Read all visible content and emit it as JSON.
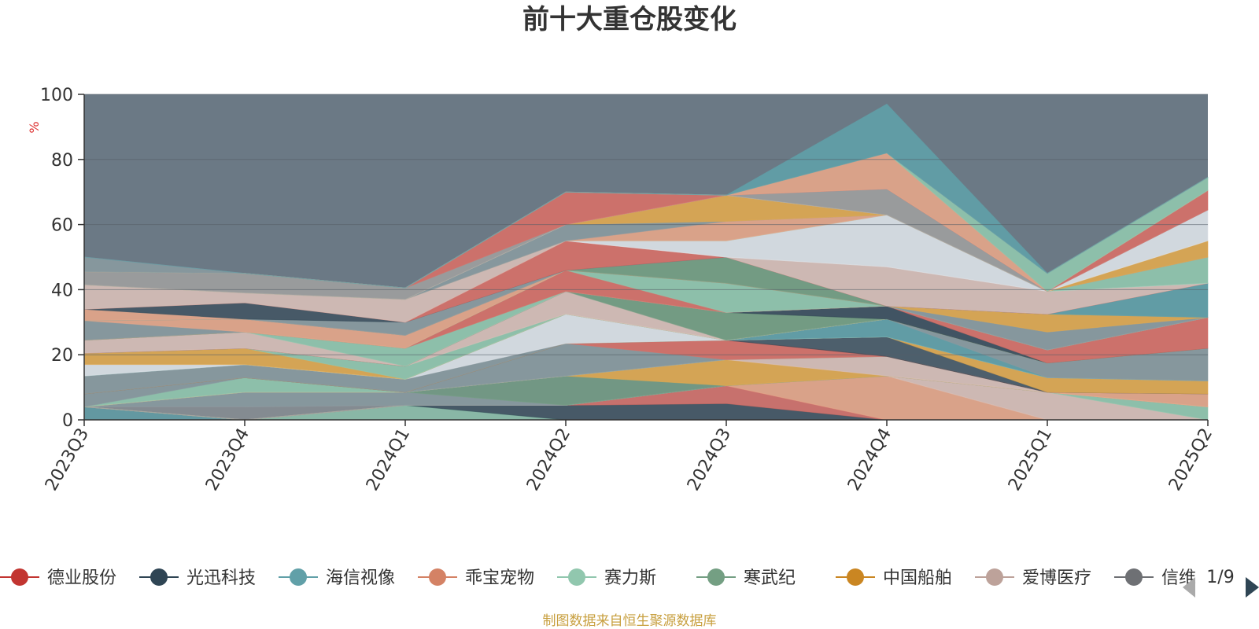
{
  "chart_data": {
    "type": "area",
    "title": "前十大重仓股变化",
    "ylabel": "%",
    "ylim": [
      0,
      100
    ],
    "y_ticks": [
      0,
      20,
      40,
      60,
      80,
      100
    ],
    "categories": [
      "2023Q3",
      "2023Q4",
      "2024Q1",
      "2024Q2",
      "2024Q3",
      "2024Q4",
      "2025Q1",
      "2025Q2"
    ],
    "legend_page": "1/9",
    "source": "制图数据来自恒生聚源数据库",
    "background_color": "#6b7985",
    "legend": [
      {
        "name": "德业股份",
        "color": "#c23531"
      },
      {
        "name": "光迅科技",
        "color": "#2f4554"
      },
      {
        "name": "海信视像",
        "color": "#61a0a8"
      },
      {
        "name": "乖宝宠物",
        "color": "#d48265"
      },
      {
        "name": "赛力斯",
        "color": "#91c7ae"
      },
      {
        "name": "寒武纪",
        "color": "#749f83"
      },
      {
        "name": "中国船舶",
        "color": "#ca8622"
      },
      {
        "name": "爱博医疗",
        "color": "#bda29a"
      },
      {
        "name": "信维通信",
        "color": "#6e7074"
      }
    ],
    "visible_legend_labels": [
      "德业股份",
      "光迅科技",
      "海信视像",
      "乖宝宠物",
      "赛力斯",
      "寒武纪",
      "中国船舶",
      "爱博医疗",
      "信维"
    ],
    "series": [
      {
        "color": "#61a0a8",
        "opacity": 0.8,
        "values": [
          4,
          0,
          0,
          0,
          0,
          0,
          0,
          0
        ]
      },
      {
        "color": "#91c7ae",
        "opacity": 0.8,
        "values": [
          0,
          0,
          4.5,
          0,
          0,
          0,
          0,
          0
        ]
      },
      {
        "color": "#2f4554",
        "opacity": 0.6,
        "values": [
          0,
          0,
          0,
          4.5,
          5,
          0,
          0,
          0
        ]
      },
      {
        "color": "#d77068",
        "opacity": 0.85,
        "values": [
          0,
          0,
          0,
          0,
          5.5,
          0,
          0,
          0
        ]
      },
      {
        "color": "#e5a68a",
        "opacity": 0.9,
        "values": [
          0,
          0,
          0,
          0,
          0,
          13.5,
          0,
          0
        ]
      },
      {
        "color": "#d8bfb8",
        "opacity": 0.9,
        "values": [
          0,
          0,
          0,
          0,
          0,
          0,
          8.5,
          0
        ]
      },
      {
        "color": "#91c7ae",
        "opacity": 0.9,
        "values": [
          0,
          0,
          0,
          0,
          0,
          0,
          0,
          4
        ]
      },
      {
        "color": "#9e9e9e",
        "opacity": 0.5,
        "values": [
          0,
          4,
          0,
          0,
          0,
          0,
          0,
          0
        ]
      },
      {
        "color": "#8a9aa0",
        "opacity": 0.9,
        "values": [
          0,
          4.5,
          4,
          0,
          0,
          0,
          0,
          0
        ]
      },
      {
        "color": "#749f83",
        "opacity": 0.8,
        "values": [
          0,
          0,
          0,
          9,
          0,
          0,
          0,
          0
        ]
      },
      {
        "color": "#e0a850",
        "opacity": 0.9,
        "values": [
          0,
          0,
          0,
          0,
          8,
          0,
          0,
          0
        ]
      },
      {
        "color": "#d8bfb8",
        "opacity": 0.9,
        "values": [
          0,
          0,
          0,
          0,
          0,
          6,
          0,
          0
        ]
      },
      {
        "color": "#e5a68a",
        "opacity": 0.9,
        "values": [
          0,
          0,
          0,
          0,
          0,
          0,
          0,
          4
        ]
      },
      {
        "color": "#91c7ae",
        "opacity": 0.9,
        "values": [
          0,
          4.5,
          0,
          0,
          0,
          0,
          0,
          0
        ]
      },
      {
        "color": "#8a9aa0",
        "opacity": 0.9,
        "values": [
          4,
          0,
          0,
          10,
          0,
          0,
          0,
          0
        ]
      },
      {
        "color": "#d77068",
        "opacity": 0.9,
        "values": [
          0,
          0,
          0,
          0,
          6,
          0,
          0,
          0
        ]
      },
      {
        "color": "#2f4554",
        "opacity": 0.5,
        "values": [
          0,
          0,
          0,
          0,
          0,
          6,
          0,
          0
        ]
      },
      {
        "color": "#e0a850",
        "opacity": 0.9,
        "values": [
          0,
          0,
          0,
          0,
          0,
          0,
          4.5,
          4
        ]
      },
      {
        "color": "#8a9aa0",
        "opacity": 0.9,
        "values": [
          5.5,
          4,
          4,
          0,
          0,
          0,
          0,
          0
        ]
      },
      {
        "color": "#dde2e8",
        "opacity": 0.9,
        "values": [
          0,
          0,
          0,
          9,
          0,
          0,
          0,
          0
        ]
      },
      {
        "color": "#91c7ae",
        "opacity": 0.9,
        "values": [
          0,
          0,
          0,
          0,
          0,
          0,
          0,
          0
        ]
      },
      {
        "color": "#61a0a8",
        "opacity": 0.9,
        "values": [
          0,
          0,
          0,
          0,
          0,
          5.5,
          0,
          0
        ]
      },
      {
        "color": "#8a9aa0",
        "opacity": 0.9,
        "values": [
          0,
          0,
          0,
          0,
          0,
          0,
          4.5,
          10
        ]
      },
      {
        "color": "#dde2e8",
        "opacity": 0.9,
        "values": [
          3.5,
          0,
          0,
          0,
          0,
          0,
          0,
          0
        ]
      },
      {
        "color": "#e0a850",
        "opacity": 0.9,
        "values": [
          3.5,
          5,
          0,
          0,
          0,
          0,
          0,
          0
        ]
      },
      {
        "color": "#91c7ae",
        "opacity": 0.9,
        "values": [
          0,
          0,
          4,
          0,
          0,
          0,
          0,
          0
        ]
      },
      {
        "color": "#d8bfb8",
        "opacity": 0.9,
        "values": [
          0,
          0,
          0,
          7,
          0,
          0,
          0,
          0
        ]
      },
      {
        "color": "#749f83",
        "opacity": 0.9,
        "values": [
          0,
          0,
          0,
          0,
          8.5,
          0,
          0,
          0
        ]
      },
      {
        "color": "#2f4554",
        "opacity": 0.7,
        "values": [
          0,
          0,
          0,
          0,
          0,
          4,
          0,
          0
        ]
      },
      {
        "color": "#d77068",
        "opacity": 0.9,
        "values": [
          0,
          0,
          0,
          0,
          0,
          0,
          4,
          9.5
        ]
      },
      {
        "color": "#d8bfb8",
        "opacity": 0.9,
        "values": [
          4,
          5,
          0,
          0,
          0,
          0,
          0,
          0
        ]
      },
      {
        "color": "#91c7ae",
        "opacity": 0.9,
        "values": [
          0,
          0,
          5.5,
          0,
          0,
          0,
          0,
          0
        ]
      },
      {
        "color": "#d77068",
        "opacity": 0.9,
        "values": [
          0,
          0,
          0,
          6.5,
          0,
          0,
          0,
          0
        ]
      },
      {
        "color": "#91c7ae",
        "opacity": 0.9,
        "values": [
          0,
          0,
          0,
          0,
          9,
          0,
          0,
          0
        ]
      },
      {
        "color": "#8a9aa0",
        "opacity": 0.9,
        "values": [
          0,
          0,
          0,
          0,
          0,
          0,
          5.5,
          0
        ]
      },
      {
        "color": "#e0a850",
        "opacity": 0.9,
        "values": [
          0,
          0,
          0,
          0,
          0,
          0,
          5.5,
          0
        ]
      },
      {
        "color": "#8a9aa0",
        "opacity": 0.9,
        "values": [
          6,
          0,
          0,
          0,
          0,
          0,
          0,
          0
        ]
      },
      {
        "color": "#e5a68a",
        "opacity": 0.9,
        "values": [
          0,
          4,
          4,
          0,
          0,
          0,
          0,
          0
        ]
      },
      {
        "color": "#749f83",
        "opacity": 0.9,
        "values": [
          0,
          0,
          0,
          0,
          8,
          0,
          0,
          0
        ]
      },
      {
        "color": "#61a0a8",
        "opacity": 0.9,
        "values": [
          0,
          0,
          0,
          0,
          0,
          0,
          0,
          10.5
        ]
      },
      {
        "color": "#e5a68a",
        "opacity": 0.9,
        "values": [
          3.5,
          0,
          0,
          0,
          0,
          0,
          0,
          0
        ]
      },
      {
        "color": "#8a9aa0",
        "opacity": 0.9,
        "values": [
          0,
          0,
          4,
          0,
          0,
          0,
          0,
          0
        ]
      },
      {
        "color": "#2f4554",
        "opacity": 0.6,
        "values": [
          0,
          5,
          0,
          0,
          0,
          0,
          0,
          0
        ]
      },
      {
        "color": "#d77068",
        "opacity": 0.9,
        "values": [
          0,
          0,
          0,
          9,
          0,
          0,
          0,
          0
        ]
      },
      {
        "color": "#d8bfb8",
        "opacity": 0.9,
        "values": [
          7.5,
          3,
          7,
          0,
          0,
          12,
          7,
          0
        ]
      },
      {
        "color": "#dde2e8",
        "opacity": 0.9,
        "values": [
          0,
          0,
          0,
          0,
          5,
          16,
          0,
          0
        ]
      },
      {
        "color": "#91c7ae",
        "opacity": 0.9,
        "values": [
          0,
          0,
          0,
          0,
          0,
          0,
          0,
          8
        ]
      },
      {
        "color": "#e5a68a",
        "opacity": 0.9,
        "values": [
          0,
          0,
          0,
          0,
          6,
          0,
          0,
          0
        ]
      },
      {
        "color": "#8a9aa0",
        "opacity": 0.9,
        "values": [
          0,
          0,
          0,
          5,
          0,
          0,
          0,
          0
        ]
      },
      {
        "color": "#e0a850",
        "opacity": 0.9,
        "values": [
          0,
          0,
          0,
          0,
          8,
          0,
          0,
          5
        ]
      },
      {
        "color": "#dde2e8",
        "opacity": 0.9,
        "values": [
          0,
          0,
          0,
          0,
          0,
          0,
          0,
          9.5
        ]
      },
      {
        "color": "#9e9e9e",
        "opacity": 0.9,
        "values": [
          4,
          6,
          3.5,
          0,
          0,
          8,
          0,
          0
        ]
      },
      {
        "color": "#d77068",
        "opacity": 0.9,
        "values": [
          0,
          0,
          0,
          10,
          0,
          0,
          0,
          6
        ]
      },
      {
        "color": "#e5a68a",
        "opacity": 0.9,
        "values": [
          0,
          0,
          0,
          0,
          0,
          11,
          0,
          0
        ]
      },
      {
        "color": "#91c7ae",
        "opacity": 0.9,
        "values": [
          0,
          0,
          0,
          0,
          0,
          0,
          5.5,
          4
        ]
      },
      {
        "color": "#8a9aa0",
        "opacity": 0.9,
        "values": [
          4.5,
          0,
          0,
          0,
          0,
          0,
          0,
          0
        ]
      },
      {
        "color": "#61a0a8",
        "opacity": 0.9,
        "values": [
          0,
          0,
          0,
          0,
          0,
          15,
          0,
          0
        ]
      }
    ]
  }
}
